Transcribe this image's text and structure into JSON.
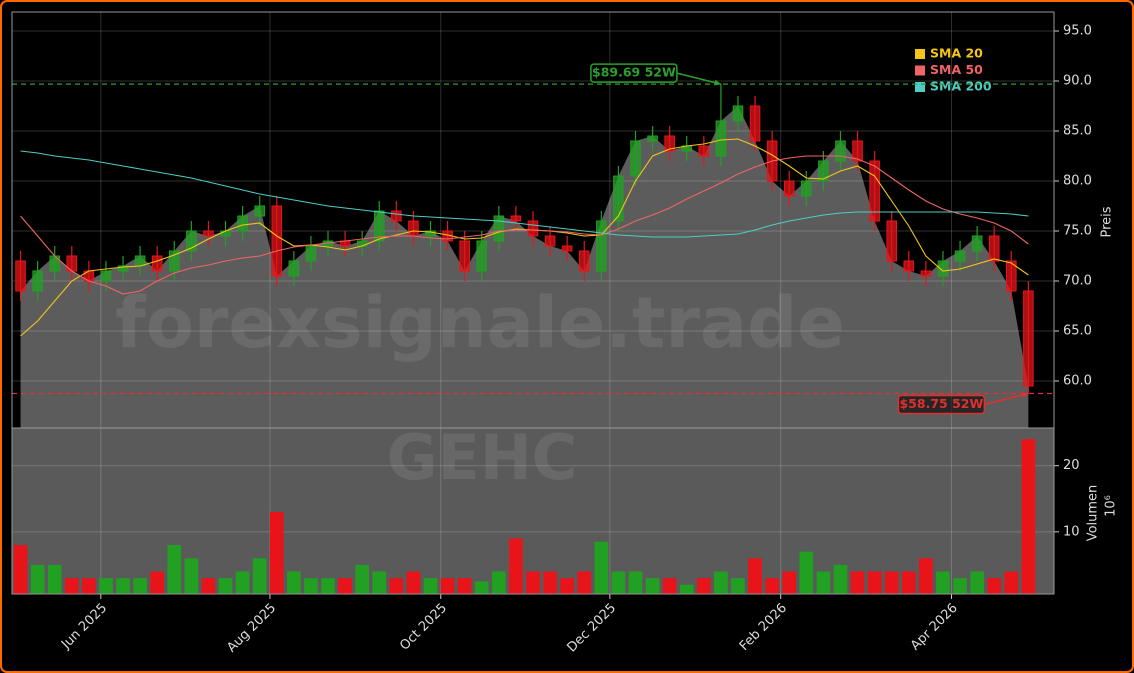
{
  "chart_data": {
    "type": "candlestick",
    "ylabel": "Preis",
    "watermark": "forexsignale.trade",
    "symbol": "GEHC",
    "legend": "upper right",
    "grid": true,
    "up_color": "#22a022",
    "down_color": "#e8141a",
    "area_color": "#5c5c5c",
    "x": [
      0,
      1,
      2,
      3,
      4,
      5,
      6,
      7,
      8,
      9,
      10,
      11,
      12,
      13,
      14,
      15,
      16,
      17,
      18,
      19,
      20,
      21,
      22,
      23,
      24,
      25,
      26,
      27,
      28,
      29,
      30,
      31,
      32,
      33,
      34,
      35,
      36,
      37,
      38,
      39,
      40,
      41,
      42,
      43,
      44,
      45,
      46,
      47,
      48,
      49,
      50,
      51,
      52,
      53,
      54,
      55,
      56,
      57,
      58,
      59
    ],
    "open": [
      72,
      69,
      71,
      72.5,
      71,
      70,
      71,
      71.5,
      72.5,
      71,
      73,
      75,
      74.5,
      75,
      76.5,
      77.5,
      70.5,
      72,
      73.5,
      74,
      73.5,
      74,
      77,
      76,
      74.5,
      75,
      74,
      71,
      74,
      76.5,
      76,
      74.5,
      73.5,
      73,
      71,
      76,
      80.5,
      84,
      84.5,
      83,
      83.5,
      82.5,
      86,
      87.5,
      84,
      80,
      78.5,
      80,
      82,
      84,
      82,
      76,
      72,
      71,
      70.5,
      72,
      73,
      74.5,
      72,
      69
    ],
    "high": [
      73,
      72,
      73.5,
      73.5,
      72,
      72,
      72.5,
      73.5,
      73.5,
      74,
      76,
      76,
      76,
      77.5,
      78.5,
      78.5,
      73,
      74.5,
      75,
      75,
      75,
      78,
      78,
      77,
      76,
      76,
      75,
      75,
      77.5,
      77.5,
      77,
      75.5,
      74.5,
      74,
      77,
      81.5,
      85,
      85.5,
      85.5,
      84.5,
      84.5,
      89.69,
      88.5,
      88.5,
      85,
      81,
      81,
      83,
      85,
      85,
      83,
      77,
      73,
      72,
      73,
      74,
      75.5,
      75.5,
      73,
      70
    ],
    "low": [
      68,
      68,
      70,
      70,
      69,
      69,
      70,
      70.5,
      70,
      70,
      72,
      73.5,
      73.5,
      74,
      75.5,
      69.5,
      69.5,
      71,
      72.5,
      72.5,
      72.5,
      73,
      75,
      73.5,
      73.5,
      73,
      70,
      70,
      73,
      75,
      73.5,
      72.5,
      72,
      70,
      70,
      75,
      79.5,
      83,
      82,
      82,
      81.5,
      81.5,
      85,
      83,
      79,
      77.5,
      77.5,
      79,
      81,
      81,
      75,
      71,
      70,
      69.5,
      69.5,
      71,
      72,
      71,
      68,
      58.75
    ],
    "close": [
      69,
      71,
      72.5,
      71,
      70,
      71,
      71.5,
      72.5,
      71,
      73,
      75,
      74.5,
      75,
      76.5,
      77.5,
      70.5,
      72,
      73.5,
      74,
      73.5,
      74,
      77,
      76,
      74.5,
      75,
      74,
      71,
      74,
      76.5,
      76,
      74.5,
      73.5,
      73,
      71,
      76,
      80.5,
      84,
      84.5,
      83,
      83.5,
      82.5,
      86,
      87.5,
      84,
      80,
      78.5,
      80,
      82,
      84,
      82,
      76,
      72,
      71,
      70.5,
      72,
      73,
      74.5,
      72,
      69,
      59.5
    ],
    "series": [
      {
        "name": "SMA 20",
        "color": "#f5c518",
        "values": [
          64.5,
          66,
          68,
          70,
          71,
          71.2,
          71.4,
          71.5,
          72,
          72.6,
          73.3,
          74.2,
          75,
          75.6,
          75.8,
          74.5,
          73.5,
          73.6,
          73.4,
          73.1,
          73.5,
          74.2,
          74.6,
          75,
          74.9,
          74.6,
          74.2,
          74.3,
          74.9,
          75.2,
          75.1,
          75,
          74.8,
          74.5,
          74.6,
          76.5,
          80,
          82.5,
          83.2,
          83.5,
          83.7,
          84.1,
          84.2,
          83.5,
          82.6,
          81.5,
          80.3,
          80.2,
          81,
          81.5,
          80.5,
          78,
          75.5,
          72.5,
          71,
          71.2,
          71.7,
          72.2,
          71.8,
          70.6
        ]
      },
      {
        "name": "SMA 50",
        "color": "#f06464",
        "values": [
          76.5,
          74.5,
          72.5,
          71,
          70,
          69.5,
          68.7,
          69,
          70,
          70.8,
          71.3,
          71.6,
          72,
          72.3,
          72.5,
          73,
          73.4,
          73.6,
          73.8,
          74,
          74.2,
          74.4,
          74.5,
          74.5,
          74.3,
          74.2,
          74.4,
          74.6,
          75,
          75.1,
          75.1,
          75,
          74.9,
          74.7,
          74.6,
          75.2,
          76,
          76.6,
          77.3,
          78.2,
          79,
          79.8,
          80.7,
          81.4,
          82,
          82.3,
          82.5,
          82.5,
          82.5,
          82.2,
          81.5,
          80.3,
          79.1,
          78,
          77.2,
          76.7,
          76.3,
          75.8,
          75,
          73.7
        ]
      },
      {
        "name": "SMA 200",
        "color": "#4ecdc4",
        "values": [
          83,
          82.8,
          82.5,
          82.3,
          82.1,
          81.8,
          81.5,
          81.2,
          80.9,
          80.6,
          80.3,
          79.9,
          79.5,
          79.1,
          78.7,
          78.4,
          78.1,
          77.8,
          77.5,
          77.3,
          77.1,
          76.9,
          76.7,
          76.5,
          76.4,
          76.3,
          76.2,
          76.1,
          76,
          75.8,
          75.6,
          75.4,
          75.2,
          75,
          74.8,
          74.6,
          74.5,
          74.4,
          74.4,
          74.4,
          74.5,
          74.6,
          74.7,
          75.1,
          75.6,
          76,
          76.3,
          76.6,
          76.8,
          76.9,
          76.9,
          76.9,
          76.9,
          76.9,
          76.9,
          76.9,
          76.9,
          76.8,
          76.7,
          76.5
        ]
      }
    ],
    "annotations": [
      {
        "text": "$89.69 52W",
        "value": 89.69,
        "x": 41,
        "color": "#2ca02c"
      },
      {
        "text": "$58.75 52W",
        "value": 58.75,
        "x": 59,
        "color": "#e03030"
      }
    ],
    "xlim": [
      -0.5,
      60.5
    ],
    "xticks": [
      {
        "value": 4.7,
        "label": "Jun 2025"
      },
      {
        "value": 14.6,
        "label": "Aug 2025"
      },
      {
        "value": 24.6,
        "label": "Oct 2025"
      },
      {
        "value": 34.5,
        "label": "Dec 2025"
      },
      {
        "value": 44.5,
        "label": "Feb 2026"
      },
      {
        "value": 54.5,
        "label": "Apr 2026"
      }
    ],
    "ylim": [
      55.3,
      96.9
    ],
    "yticks": [
      {
        "value": 60,
        "label": "60.0"
      },
      {
        "value": 65,
        "label": "65.0"
      },
      {
        "value": 70,
        "label": "70.0"
      },
      {
        "value": 75,
        "label": "75.0"
      },
      {
        "value": 80,
        "label": "80.0"
      },
      {
        "value": 85,
        "label": "85.0"
      },
      {
        "value": 90,
        "label": "90.0"
      },
      {
        "value": 95,
        "label": "95.0"
      }
    ],
    "volume": {
      "label": "Volumen",
      "unit": "10⁶",
      "ylim": [
        0.6,
        25.7
      ],
      "yticks": [
        10,
        20
      ],
      "values": [
        8,
        5,
        5,
        3,
        3,
        3,
        3,
        3,
        4,
        8,
        6,
        3,
        3,
        4,
        6,
        13,
        4,
        3,
        3,
        3,
        5,
        4,
        3,
        4,
        3,
        3,
        3,
        2.5,
        4,
        9,
        4,
        4,
        3,
        4,
        8.5,
        4,
        4,
        3,
        3,
        2,
        3,
        4,
        3,
        6,
        3,
        4,
        7,
        4,
        5,
        4,
        4,
        4,
        4,
        6,
        4,
        3,
        4,
        3,
        4,
        24
      ]
    }
  }
}
